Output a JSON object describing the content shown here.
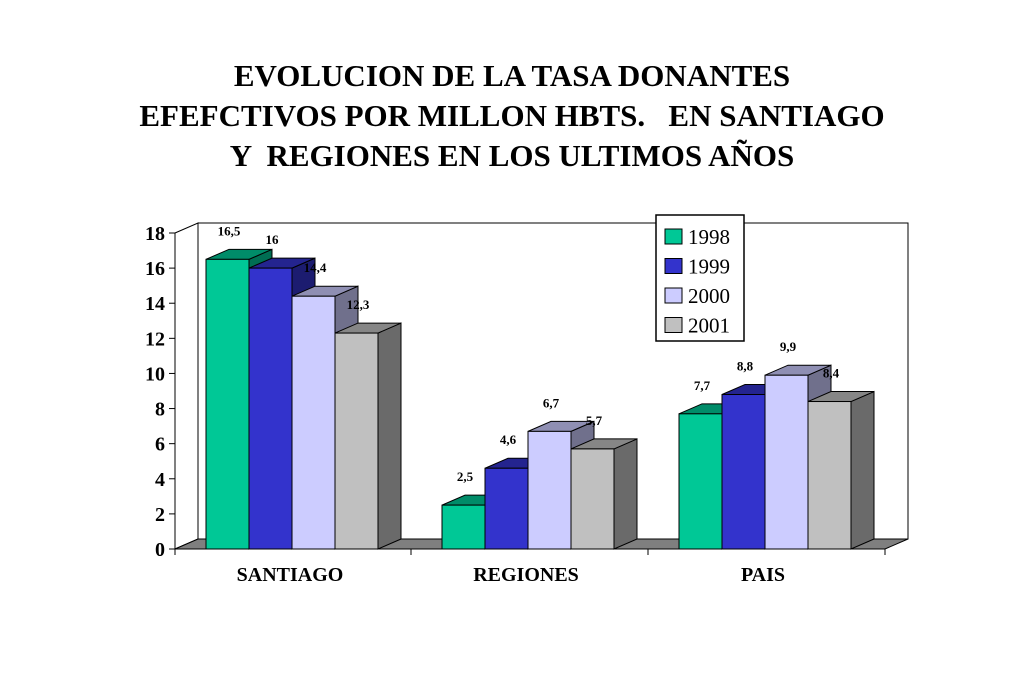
{
  "title_lines": [
    "EVOLUCION DE LA TASA DONANTES",
    "EFEFCTIVOS POR MILLON HBTS.   EN SANTIAGO",
    "Y  REGIONES EN LOS ULTIMOS AÑOS"
  ],
  "chart_data": {
    "type": "bar",
    "categories": [
      "SANTIAGO",
      "REGIONES",
      "PAIS"
    ],
    "series": [
      {
        "name": "1998",
        "color": "#00c896",
        "values": [
          16.5,
          2.5,
          7.7
        ],
        "labels": [
          "16,5",
          "2,5",
          "7,7"
        ]
      },
      {
        "name": "1999",
        "color": "#3333cc",
        "values": [
          16,
          4.6,
          8.8
        ],
        "labels": [
          "16",
          "4,6",
          "8,8"
        ]
      },
      {
        "name": "2000",
        "color": "#ccccff",
        "values": [
          14.4,
          6.7,
          9.9
        ],
        "labels": [
          "14,4",
          "6,7",
          "9,9"
        ]
      },
      {
        "name": "2001",
        "color": "#c0c0c0",
        "values": [
          12.3,
          5.7,
          8.4
        ],
        "labels": [
          "12,3",
          "5,7",
          "8,4"
        ]
      }
    ],
    "yticks": [
      "0",
      "2",
      "4",
      "6",
      "8",
      "10",
      "12",
      "14",
      "16",
      "18"
    ],
    "ylim": [
      0,
      18
    ],
    "legend_position": "top-right",
    "grid": false
  }
}
